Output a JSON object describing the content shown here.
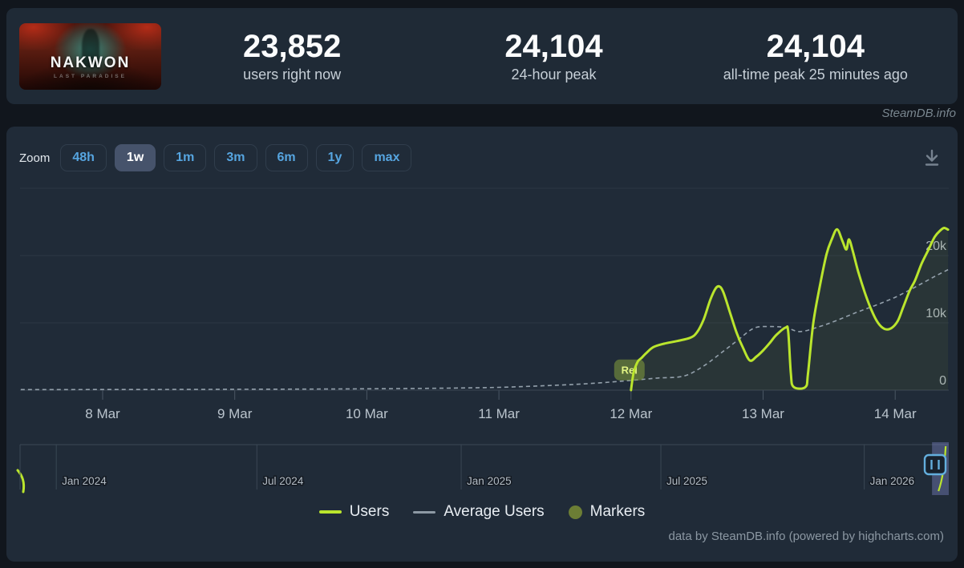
{
  "header": {
    "game": {
      "title": "NAKWON",
      "subtitle": "LAST PARADISE"
    },
    "stats": [
      {
        "value": "23,852",
        "label": "users right now"
      },
      {
        "value": "24,104",
        "label": "24-hour peak"
      },
      {
        "value": "24,104",
        "label": "all-time peak 25 minutes ago"
      }
    ]
  },
  "watermark": "SteamDB.info",
  "toolbar": {
    "zoom_label": "Zoom",
    "ranges": [
      "48h",
      "1w",
      "1m",
      "3m",
      "6m",
      "1y",
      "max"
    ],
    "selected": "1w",
    "download_icon": "download-icon"
  },
  "legend": [
    {
      "name": "Users",
      "swatch": "line",
      "color": "#bae52d"
    },
    {
      "name": "Average Users",
      "swatch": "line",
      "color": "#8d99a4"
    },
    {
      "name": "Markers",
      "swatch": "circle",
      "color": "#6c7e35"
    }
  ],
  "credit": "data by SteamDB.info (powered by highcharts.com)",
  "colors": {
    "users_line": "#bae52d",
    "average_line": "#93a0ab",
    "marker_fill": "#6c7e35",
    "link_blue": "#56a5e0",
    "selected_range_bg": "#46536b",
    "grid": "#2b3744",
    "zero_line": "#3b4755",
    "navigator_selection": "rgba(124,130,196,0.42)",
    "navigator_handle": "#63aedd",
    "release_badge_bg": "rgba(125,150,60,0.6)"
  },
  "chart_data": {
    "type": "line",
    "title": "",
    "xlabel": "",
    "ylabel": "",
    "ylim": [
      0,
      30000
    ],
    "grid": true,
    "legend_position": "bottom",
    "x_ticks": [
      {
        "label": "8 Mar",
        "d": 0
      },
      {
        "label": "9 Mar",
        "d": 1
      },
      {
        "label": "10 Mar",
        "d": 2
      },
      {
        "label": "11 Mar",
        "d": 3
      },
      {
        "label": "12 Mar",
        "d": 4
      },
      {
        "label": "13 Mar",
        "d": 5
      },
      {
        "label": "14 Mar",
        "d": 6
      }
    ],
    "y_gridlines": [
      {
        "v": 0,
        "label": "0"
      },
      {
        "v": 10000,
        "label": "10k"
      },
      {
        "v": 20000,
        "label": "20k"
      },
      {
        "v": 30000,
        "label": ""
      }
    ],
    "series": [
      {
        "name": "Users",
        "style": "solid",
        "points": [
          [
            4.0,
            0
          ],
          [
            4.02,
            2600
          ],
          [
            4.05,
            4200
          ],
          [
            4.08,
            4800
          ],
          [
            4.12,
            5600
          ],
          [
            4.17,
            6400
          ],
          [
            4.25,
            6900
          ],
          [
            4.35,
            7300
          ],
          [
            4.45,
            7800
          ],
          [
            4.5,
            8600
          ],
          [
            4.55,
            10500
          ],
          [
            4.6,
            13400
          ],
          [
            4.64,
            15100
          ],
          [
            4.67,
            15400
          ],
          [
            4.7,
            14500
          ],
          [
            4.75,
            11500
          ],
          [
            4.8,
            8500
          ],
          [
            4.85,
            6200
          ],
          [
            4.9,
            4400
          ],
          [
            4.95,
            5000
          ],
          [
            5.0,
            5900
          ],
          [
            5.05,
            7000
          ],
          [
            5.1,
            8200
          ],
          [
            5.17,
            9300
          ],
          [
            5.19,
            8700
          ],
          [
            5.21,
            2500
          ],
          [
            5.23,
            500
          ],
          [
            5.32,
            450
          ],
          [
            5.34,
            2500
          ],
          [
            5.38,
            10000
          ],
          [
            5.43,
            15500
          ],
          [
            5.48,
            20200
          ],
          [
            5.52,
            22400
          ],
          [
            5.56,
            23900
          ],
          [
            5.6,
            22200
          ],
          [
            5.63,
            20900
          ],
          [
            5.65,
            22400
          ],
          [
            5.68,
            20600
          ],
          [
            5.72,
            17600
          ],
          [
            5.77,
            14500
          ],
          [
            5.82,
            11900
          ],
          [
            5.87,
            10000
          ],
          [
            5.92,
            9100
          ],
          [
            5.97,
            9200
          ],
          [
            6.02,
            10300
          ],
          [
            6.06,
            12300
          ],
          [
            6.11,
            14800
          ],
          [
            6.15,
            16300
          ],
          [
            6.2,
            18800
          ],
          [
            6.25,
            20800
          ],
          [
            6.3,
            22800
          ],
          [
            6.34,
            23700
          ],
          [
            6.37,
            24104
          ],
          [
            6.4,
            23852
          ]
        ]
      },
      {
        "name": "Average Users",
        "style": "dashed",
        "points": [
          [
            -0.62,
            80
          ],
          [
            0,
            90
          ],
          [
            1,
            130
          ],
          [
            2,
            200
          ],
          [
            2.6,
            300
          ],
          [
            3.0,
            420
          ],
          [
            3.4,
            700
          ],
          [
            3.7,
            1000
          ],
          [
            4.0,
            1450
          ],
          [
            4.2,
            1800
          ],
          [
            4.4,
            2100
          ],
          [
            4.55,
            3600
          ],
          [
            4.7,
            5800
          ],
          [
            4.8,
            7300
          ],
          [
            4.93,
            9200
          ],
          [
            5.05,
            9450
          ],
          [
            5.17,
            9300
          ],
          [
            5.28,
            8700
          ],
          [
            5.42,
            9400
          ],
          [
            5.55,
            10300
          ],
          [
            5.7,
            11500
          ],
          [
            5.85,
            12600
          ],
          [
            6.0,
            13800
          ],
          [
            6.15,
            15300
          ],
          [
            6.3,
            16900
          ],
          [
            6.4,
            17900
          ]
        ]
      }
    ],
    "annotations": [
      {
        "label": "Rel",
        "d": 4.0,
        "v": 3000
      }
    ],
    "navigator": {
      "ticks": [
        {
          "label": "",
          "f": 0.0
        },
        {
          "label": "Jan 2024",
          "f": 0.039
        },
        {
          "label": "Jul 2024",
          "f": 0.255
        },
        {
          "label": "Jan 2025",
          "f": 0.475
        },
        {
          "label": "Jul 2025",
          "f": 0.69
        },
        {
          "label": "Jan 2026",
          "f": 0.909
        }
      ],
      "selection": [
        0.982,
        1.0
      ]
    }
  }
}
